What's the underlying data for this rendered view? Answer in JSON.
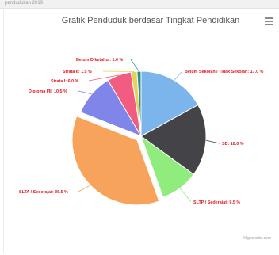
{
  "page": {
    "topbar_text": "pendudukan 2019"
  },
  "toolbar": {
    "menu_icon": "hamburger-menu-icon"
  },
  "credit": "Highcharts.com",
  "chart_data": {
    "type": "pie",
    "title": "Grafik Penduduk berdasar Tingkat Pendidikan",
    "slices": [
      {
        "name": "Belum Sekolah / Tidak Sekolah",
        "label": "Belum Sekolah / Tidak Sekolah: 17.0 %",
        "value": 17.0,
        "color": "#7cb5ec",
        "sliced": false
      },
      {
        "name": "SD",
        "label": "SD: 18.0 %",
        "value": 18.0,
        "color": "#434348",
        "sliced": false
      },
      {
        "name": "SLTP / Sederajat",
        "label": "SLTP / Sederajat: 9.5 %",
        "value": 9.5,
        "color": "#90ed7d",
        "sliced": false
      },
      {
        "name": "SLTA / Sederajat",
        "label": "SLTA / Sederajat: 36.5 %",
        "value": 36.5,
        "color": "#f7a35c",
        "sliced": true
      },
      {
        "name": "Diploma I/II",
        "label": "Diploma I/II: 10.5 %",
        "value": 10.5,
        "color": "#8085e9",
        "sliced": false
      },
      {
        "name": "Strata I",
        "label": "Strata I: 6.0 %",
        "value": 6.0,
        "color": "#f15c80",
        "sliced": false
      },
      {
        "name": "Strata II",
        "label": "Strata II: 1.5 %",
        "value": 1.5,
        "color": "#e4d354",
        "sliced": false
      },
      {
        "name": "Belum Diketahui",
        "label": "Belum Diketahui: 1.0 %",
        "value": 1.0,
        "color": "#2b908f",
        "sliced": false
      }
    ],
    "label_color": "#e0181f",
    "legend": "none"
  }
}
